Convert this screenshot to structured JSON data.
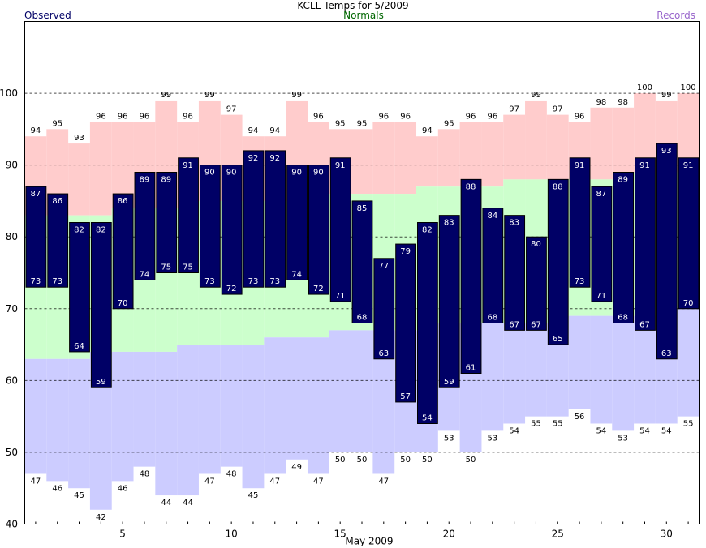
{
  "chart_data": {
    "type": "bar",
    "title": "KCLL Temps for 5/2009",
    "xlabel": "May 2009",
    "ylabel": "",
    "ylim": [
      40,
      110
    ],
    "xlim": [
      0.5,
      31.5
    ],
    "y_ticks": [
      40,
      50,
      60,
      70,
      80,
      90,
      100
    ],
    "x_ticks": [
      5,
      10,
      15,
      20,
      25,
      30
    ],
    "grid": "horizontal dashed at 50, 60, 70, 80, 90, 100",
    "legend": {
      "observed": {
        "label": "Observed",
        "color": "#000066"
      },
      "normals": {
        "label": "Normals",
        "color": "#006600"
      },
      "records": {
        "label": "Records",
        "color": "#9966cc"
      }
    },
    "days": [
      1,
      2,
      3,
      4,
      5,
      6,
      7,
      8,
      9,
      10,
      11,
      12,
      13,
      14,
      15,
      16,
      17,
      18,
      19,
      20,
      21,
      22,
      23,
      24,
      25,
      26,
      27,
      28,
      29,
      30,
      31
    ],
    "series": [
      {
        "name": "Observed",
        "high": [
          87,
          86,
          82,
          82,
          86,
          89,
          89,
          91,
          90,
          90,
          92,
          92,
          90,
          90,
          91,
          85,
          77,
          79,
          82,
          83,
          88,
          84,
          83,
          80,
          88,
          91,
          87,
          89,
          91,
          93,
          91
        ],
        "low": [
          73,
          73,
          64,
          59,
          70,
          74,
          75,
          75,
          73,
          72,
          73,
          73,
          74,
          72,
          71,
          68,
          63,
          57,
          54,
          59,
          61,
          68,
          67,
          67,
          65,
          73,
          71,
          68,
          67,
          63,
          70
        ],
        "color": "#000066"
      },
      {
        "name": "Normals",
        "high": [
          83,
          83,
          83,
          83,
          84,
          84,
          84,
          84,
          85,
          85,
          85,
          85,
          85,
          85,
          86,
          86,
          86,
          86,
          87,
          87,
          87,
          87,
          88,
          88,
          88,
          88,
          88,
          88,
          89,
          89,
          89
        ],
        "low": [
          63,
          63,
          63,
          64,
          64,
          64,
          64,
          65,
          65,
          65,
          65,
          66,
          66,
          66,
          67,
          67,
          67,
          67,
          67,
          68,
          68,
          68,
          68,
          68,
          68,
          69,
          69,
          69,
          69,
          70,
          70
        ],
        "color": "#ccffcc"
      },
      {
        "name": "Records",
        "high": [
          94,
          95,
          93,
          96,
          96,
          96,
          99,
          96,
          99,
          97,
          94,
          94,
          99,
          96,
          95,
          95,
          96,
          96,
          94,
          95,
          96,
          96,
          97,
          99,
          97,
          96,
          98,
          98,
          100,
          99,
          100
        ],
        "low": [
          47,
          46,
          45,
          42,
          46,
          48,
          44,
          44,
          47,
          48,
          45,
          47,
          49,
          47,
          50,
          50,
          47,
          50,
          50,
          53,
          50,
          53,
          54,
          55,
          55,
          56,
          54,
          53,
          54,
          54,
          55
        ],
        "color_high": "#ffcccc",
        "color_low": "#ccccff"
      }
    ]
  }
}
